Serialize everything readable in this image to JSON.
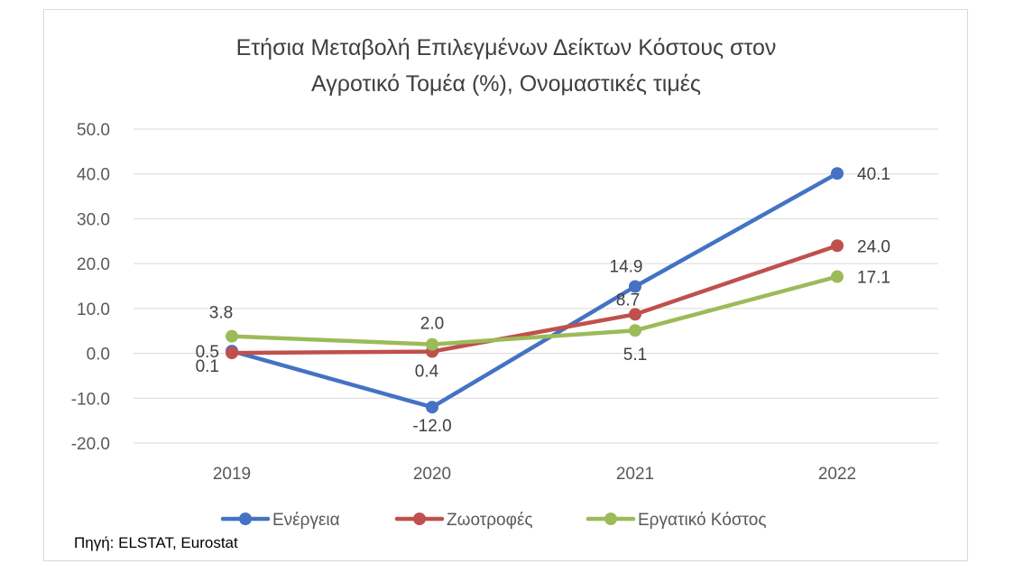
{
  "chart_data": {
    "type": "line",
    "title_lines": [
      "Ετήσια Μεταβολή Επιλεγμένων Δείκτων Κόστους στον",
      "Αγροτικό Τομέα (%), Ονομαστικές τιμές"
    ],
    "xlabel": "",
    "ylabel": "",
    "categories": [
      "2019",
      "2020",
      "2021",
      "2022"
    ],
    "ylim": [
      -20,
      50
    ],
    "yticks": [
      "50.0",
      "40.0",
      "30.0",
      "20.0",
      "10.0",
      "0.0",
      "-10.0",
      "-20.0"
    ],
    "grid": true,
    "legend_position": "bottom",
    "series": [
      {
        "name": "Ενέργεια",
        "color": "#4472c4",
        "values": [
          0.5,
          -12.0,
          14.9,
          40.1
        ],
        "labels": [
          "0.5",
          "-12.0",
          "14.9",
          "40.1"
        ]
      },
      {
        "name": "Ζωοτροφές",
        "color": "#c0504d",
        "values": [
          0.1,
          0.4,
          8.7,
          24.0
        ],
        "labels": [
          "0.1",
          "0.4",
          "8.7",
          "24.0"
        ]
      },
      {
        "name": "Εργατικό Κόστος",
        "color": "#9bbb59",
        "values": [
          3.8,
          2.0,
          5.1,
          17.1
        ],
        "labels": [
          "3.8",
          "2.0",
          "5.1",
          "17.1"
        ]
      }
    ]
  },
  "source_text": "Πηγή: ELSTAT, Eurostat"
}
